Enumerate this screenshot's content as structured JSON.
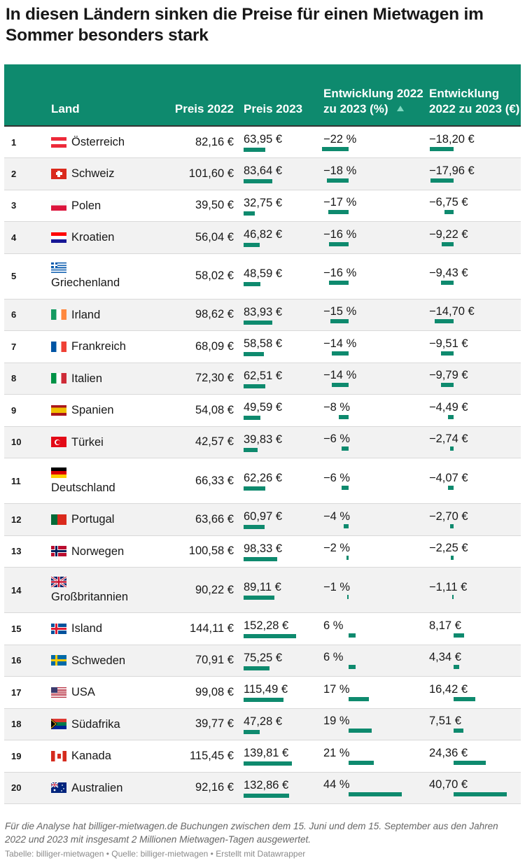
{
  "title": "In diesen Ländern sinken die Preise für einen Mietwagen im Sommer besonders stark",
  "header": {
    "land": "Land",
    "preis2022": "Preis 2022",
    "preis2023": "Preis 2023",
    "entw_pct": "Entwicklung 2022 zu 2023 (%)",
    "entw_eur": "Entwicklung 2022 zu 2023 (€)"
  },
  "colors": {
    "header_bg": "#0e8a6e",
    "bar": "#0e8a6e",
    "stripe": "#f2f2f2"
  },
  "chart_data": {
    "type": "table",
    "columns": [
      "",
      "Land",
      "Preis 2022",
      "Preis 2023",
      "Entwicklung 2022 zu 2023 (%)",
      "Entwicklung 2022 zu 2023 (€)"
    ],
    "sort": {
      "column": "Entwicklung 2022 zu 2023 (%)",
      "direction": "ascending"
    },
    "rows": [
      {
        "rank": "1",
        "land": "Österreich",
        "flag": "at",
        "p22": "82,16 €",
        "p23": "63,95 €",
        "p23_num": 63.95,
        "pct": "−22 %",
        "pct_num": -22,
        "eur": "−18,20 €",
        "eur_num": -18.2
      },
      {
        "rank": "2",
        "land": "Schweiz",
        "flag": "ch",
        "p22": "101,60 €",
        "p23": "83,64 €",
        "p23_num": 83.64,
        "pct": "−18 %",
        "pct_num": -18,
        "eur": "−17,96 €",
        "eur_num": -17.96
      },
      {
        "rank": "3",
        "land": "Polen",
        "flag": "pl",
        "p22": "39,50 €",
        "p23": "32,75 €",
        "p23_num": 32.75,
        "pct": "−17 %",
        "pct_num": -17,
        "eur": "−6,75 €",
        "eur_num": -6.75
      },
      {
        "rank": "4",
        "land": "Kroatien",
        "flag": "hr",
        "p22": "56,04 €",
        "p23": "46,82 €",
        "p23_num": 46.82,
        "pct": "−16 %",
        "pct_num": -16,
        "eur": "−9,22 €",
        "eur_num": -9.22
      },
      {
        "rank": "5",
        "land": "Griechenland",
        "flag": "gr",
        "p22": "58,02 €",
        "p23": "48,59 €",
        "p23_num": 48.59,
        "pct": "−16 %",
        "pct_num": -16,
        "eur": "−9,43 €",
        "eur_num": -9.43
      },
      {
        "rank": "6",
        "land": "Irland",
        "flag": "ie",
        "p22": "98,62 €",
        "p23": "83,93 €",
        "p23_num": 83.93,
        "pct": "−15 %",
        "pct_num": -15,
        "eur": "−14,70 €",
        "eur_num": -14.7
      },
      {
        "rank": "7",
        "land": "Frankreich",
        "flag": "fr",
        "p22": "68,09 €",
        "p23": "58,58 €",
        "p23_num": 58.58,
        "pct": "−14 %",
        "pct_num": -14,
        "eur": "−9,51 €",
        "eur_num": -9.51
      },
      {
        "rank": "8",
        "land": "Italien",
        "flag": "it",
        "p22": "72,30 €",
        "p23": "62,51 €",
        "p23_num": 62.51,
        "pct": "−14 %",
        "pct_num": -14,
        "eur": "−9,79 €",
        "eur_num": -9.79
      },
      {
        "rank": "9",
        "land": "Spanien",
        "flag": "es",
        "p22": "54,08 €",
        "p23": "49,59 €",
        "p23_num": 49.59,
        "pct": "−8 %",
        "pct_num": -8,
        "eur": "−4,49 €",
        "eur_num": -4.49
      },
      {
        "rank": "10",
        "land": "Türkei",
        "flag": "tr",
        "p22": "42,57 €",
        "p23": "39,83 €",
        "p23_num": 39.83,
        "pct": "−6 %",
        "pct_num": -6,
        "eur": "−2,74 €",
        "eur_num": -2.74
      },
      {
        "rank": "11",
        "land": "Deutschland",
        "flag": "de",
        "p22": "66,33 €",
        "p23": "62,26 €",
        "p23_num": 62.26,
        "pct": "−6 %",
        "pct_num": -6,
        "eur": "−4,07 €",
        "eur_num": -4.07
      },
      {
        "rank": "12",
        "land": "Portugal",
        "flag": "pt",
        "p22": "63,66 €",
        "p23": "60,97 €",
        "p23_num": 60.97,
        "pct": "−4 %",
        "pct_num": -4,
        "eur": "−2,70 €",
        "eur_num": -2.7
      },
      {
        "rank": "13",
        "land": "Norwegen",
        "flag": "no",
        "p22": "100,58 €",
        "p23": "98,33 €",
        "p23_num": 98.33,
        "pct": "−2 %",
        "pct_num": -2,
        "eur": "−2,25 €",
        "eur_num": -2.25
      },
      {
        "rank": "14",
        "land": "Großbritannien",
        "flag": "gb",
        "p22": "90,22 €",
        "p23": "89,11 €",
        "p23_num": 89.11,
        "pct": "−1 %",
        "pct_num": -1,
        "eur": "−1,11 €",
        "eur_num": -1.11
      },
      {
        "rank": "15",
        "land": "Island",
        "flag": "is",
        "p22": "144,11 €",
        "p23": "152,28 €",
        "p23_num": 152.28,
        "pct": "6 %",
        "pct_num": 6,
        "eur": "8,17 €",
        "eur_num": 8.17
      },
      {
        "rank": "16",
        "land": "Schweden",
        "flag": "se",
        "p22": "70,91 €",
        "p23": "75,25 €",
        "p23_num": 75.25,
        "pct": "6 %",
        "pct_num": 6,
        "eur": "4,34 €",
        "eur_num": 4.34
      },
      {
        "rank": "17",
        "land": "USA",
        "flag": "us",
        "p22": "99,08 €",
        "p23": "115,49 €",
        "p23_num": 115.49,
        "pct": "17 %",
        "pct_num": 17,
        "eur": "16,42 €",
        "eur_num": 16.42
      },
      {
        "rank": "18",
        "land": "Südafrika",
        "flag": "za",
        "p22": "39,77 €",
        "p23": "47,28 €",
        "p23_num": 47.28,
        "pct": "19 %",
        "pct_num": 19,
        "eur": "7,51 €",
        "eur_num": 7.51
      },
      {
        "rank": "19",
        "land": "Kanada",
        "flag": "ca",
        "p22": "115,45 €",
        "p23": "139,81 €",
        "p23_num": 139.81,
        "pct": "21 %",
        "pct_num": 21,
        "eur": "24,36 €",
        "eur_num": 24.36
      },
      {
        "rank": "20",
        "land": "Australien",
        "flag": "au",
        "p22": "92,16 €",
        "p23": "132,86 €",
        "p23_num": 132.86,
        "pct": "44 %",
        "pct_num": 44,
        "eur": "40,70 €",
        "eur_num": 40.7
      }
    ]
  },
  "note": "Für die Analyse hat billiger-mietwagen.de Buchungen zwischen dem 15. Juni und dem 15. September aus den Jahren 2022 und 2023 mit insgesamt 2 Millionen Mietwagen-Tagen ausgewertet.",
  "footer": "Tabelle: billiger-mietwagen • Quelle: billiger-mietwagen • Erstellt mit Datawrapper"
}
